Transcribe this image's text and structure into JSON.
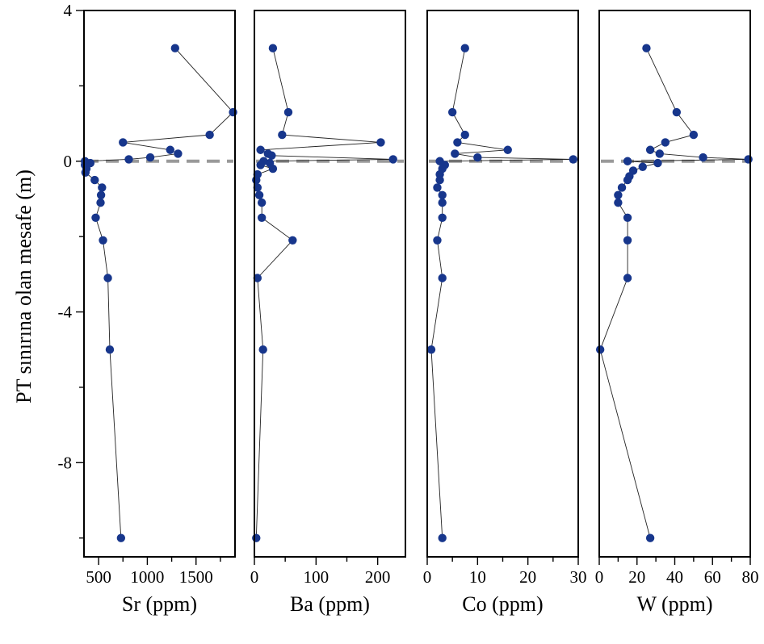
{
  "figure": {
    "ylabel": "PT sınırına olan mesafe (m)"
  },
  "colors": {
    "marker": "#17368c",
    "line": "#222222",
    "boundary": "#9a9a9a",
    "frame": "#000000"
  },
  "chart_data": [
    {
      "type": "scatter",
      "xlabel": "Sr (ppm)",
      "ylabel": "PT sınırına olan mesafe (m)",
      "xlim": [
        350,
        1900
      ],
      "ylim": [
        -10.5,
        4
      ],
      "x_ticks": [
        500,
        1000,
        1500
      ],
      "x_tick_labels": [
        "500",
        "1000",
        "1500"
      ],
      "y_ticks": [
        4,
        0,
        -4,
        -8
      ],
      "y_tick_labels": [
        "4",
        "0",
        "-4",
        "-8"
      ],
      "boundary_y": 0,
      "grid": false,
      "points": [
        {
          "x": 1285,
          "y": 3.0
        },
        {
          "x": 1880,
          "y": 1.3
        },
        {
          "x": 1640,
          "y": 0.7
        },
        {
          "x": 750,
          "y": 0.5
        },
        {
          "x": 1235,
          "y": 0.3
        },
        {
          "x": 1315,
          "y": 0.2
        },
        {
          "x": 1030,
          "y": 0.1
        },
        {
          "x": 810,
          "y": 0.05
        },
        {
          "x": 360,
          "y": 0.0
        },
        {
          "x": 415,
          "y": -0.05
        },
        {
          "x": 360,
          "y": -0.1
        },
        {
          "x": 375,
          "y": -0.2
        },
        {
          "x": 365,
          "y": -0.3
        },
        {
          "x": 460,
          "y": -0.5
        },
        {
          "x": 535,
          "y": -0.7
        },
        {
          "x": 525,
          "y": -0.9
        },
        {
          "x": 520,
          "y": -1.1
        },
        {
          "x": 470,
          "y": -1.5
        },
        {
          "x": 545,
          "y": -2.1
        },
        {
          "x": 595,
          "y": -3.1
        },
        {
          "x": 615,
          "y": -5.0
        },
        {
          "x": 730,
          "y": -10.0
        }
      ]
    },
    {
      "type": "scatter",
      "xlabel": "Ba (ppm)",
      "xlim": [
        0,
        245
      ],
      "ylim": [
        -10.5,
        4
      ],
      "x_ticks": [
        0,
        100,
        200
      ],
      "x_tick_labels": [
        "0",
        "100",
        "200"
      ],
      "boundary_y": 0,
      "grid": false,
      "points": [
        {
          "x": 30,
          "y": 3.0
        },
        {
          "x": 55,
          "y": 1.3
        },
        {
          "x": 45,
          "y": 0.7
        },
        {
          "x": 205,
          "y": 0.5
        },
        {
          "x": 10,
          "y": 0.3
        },
        {
          "x": 22,
          "y": 0.2
        },
        {
          "x": 28,
          "y": 0.15
        },
        {
          "x": 225,
          "y": 0.05
        },
        {
          "x": 15,
          "y": 0.0
        },
        {
          "x": 25,
          "y": -0.05
        },
        {
          "x": 10,
          "y": -0.1
        },
        {
          "x": 30,
          "y": -0.2
        },
        {
          "x": 5,
          "y": -0.35
        },
        {
          "x": 3,
          "y": -0.5
        },
        {
          "x": 5,
          "y": -0.7
        },
        {
          "x": 8,
          "y": -0.9
        },
        {
          "x": 12,
          "y": -1.1
        },
        {
          "x": 12,
          "y": -1.5
        },
        {
          "x": 62,
          "y": -2.1
        },
        {
          "x": 5,
          "y": -3.1
        },
        {
          "x": 14,
          "y": -5.0
        },
        {
          "x": 3,
          "y": -10.0
        }
      ]
    },
    {
      "type": "scatter",
      "xlabel": "Co (ppm)",
      "xlim": [
        0,
        30
      ],
      "ylim": [
        -10.5,
        4
      ],
      "x_ticks": [
        0,
        10,
        20,
        30
      ],
      "x_tick_labels": [
        "0",
        "10",
        "20",
        "30"
      ],
      "boundary_y": 0,
      "grid": false,
      "points": [
        {
          "x": 7.5,
          "y": 3.0
        },
        {
          "x": 5.0,
          "y": 1.3
        },
        {
          "x": 7.5,
          "y": 0.7
        },
        {
          "x": 6.0,
          "y": 0.5
        },
        {
          "x": 16.0,
          "y": 0.3
        },
        {
          "x": 5.5,
          "y": 0.2
        },
        {
          "x": 10.0,
          "y": 0.1
        },
        {
          "x": 29.0,
          "y": 0.05
        },
        {
          "x": 2.5,
          "y": 0.0
        },
        {
          "x": 3.5,
          "y": -0.1
        },
        {
          "x": 3.0,
          "y": -0.2
        },
        {
          "x": 2.5,
          "y": -0.35
        },
        {
          "x": 2.5,
          "y": -0.5
        },
        {
          "x": 2.0,
          "y": -0.7
        },
        {
          "x": 3.0,
          "y": -0.9
        },
        {
          "x": 3.0,
          "y": -1.1
        },
        {
          "x": 3.0,
          "y": -1.5
        },
        {
          "x": 2.0,
          "y": -2.1
        },
        {
          "x": 3.0,
          "y": -3.1
        },
        {
          "x": 0.8,
          "y": -5.0
        },
        {
          "x": 3.0,
          "y": -10.0
        }
      ]
    },
    {
      "type": "scatter",
      "xlabel": "W (ppm)",
      "xlim": [
        0,
        80
      ],
      "ylim": [
        -10.5,
        4
      ],
      "x_ticks": [
        0,
        20,
        40,
        60,
        80
      ],
      "x_tick_labels": [
        "0",
        "20",
        "40",
        "60",
        "80"
      ],
      "boundary_y": 0,
      "grid": false,
      "points": [
        {
          "x": 25,
          "y": 3.0
        },
        {
          "x": 41,
          "y": 1.3
        },
        {
          "x": 50,
          "y": 0.7
        },
        {
          "x": 35,
          "y": 0.5
        },
        {
          "x": 27,
          "y": 0.3
        },
        {
          "x": 32,
          "y": 0.2
        },
        {
          "x": 55,
          "y": 0.1
        },
        {
          "x": 79,
          "y": 0.05
        },
        {
          "x": 15,
          "y": 0.0
        },
        {
          "x": 31,
          "y": -0.05
        },
        {
          "x": 23,
          "y": -0.15
        },
        {
          "x": 18,
          "y": -0.25
        },
        {
          "x": 16,
          "y": -0.4
        },
        {
          "x": 15,
          "y": -0.5
        },
        {
          "x": 12,
          "y": -0.7
        },
        {
          "x": 10,
          "y": -0.9
        },
        {
          "x": 10,
          "y": -1.1
        },
        {
          "x": 15,
          "y": -1.5
        },
        {
          "x": 15,
          "y": -2.1
        },
        {
          "x": 15,
          "y": -3.1
        },
        {
          "x": 0.5,
          "y": -5.0
        },
        {
          "x": 27,
          "y": -10.0
        }
      ]
    }
  ]
}
